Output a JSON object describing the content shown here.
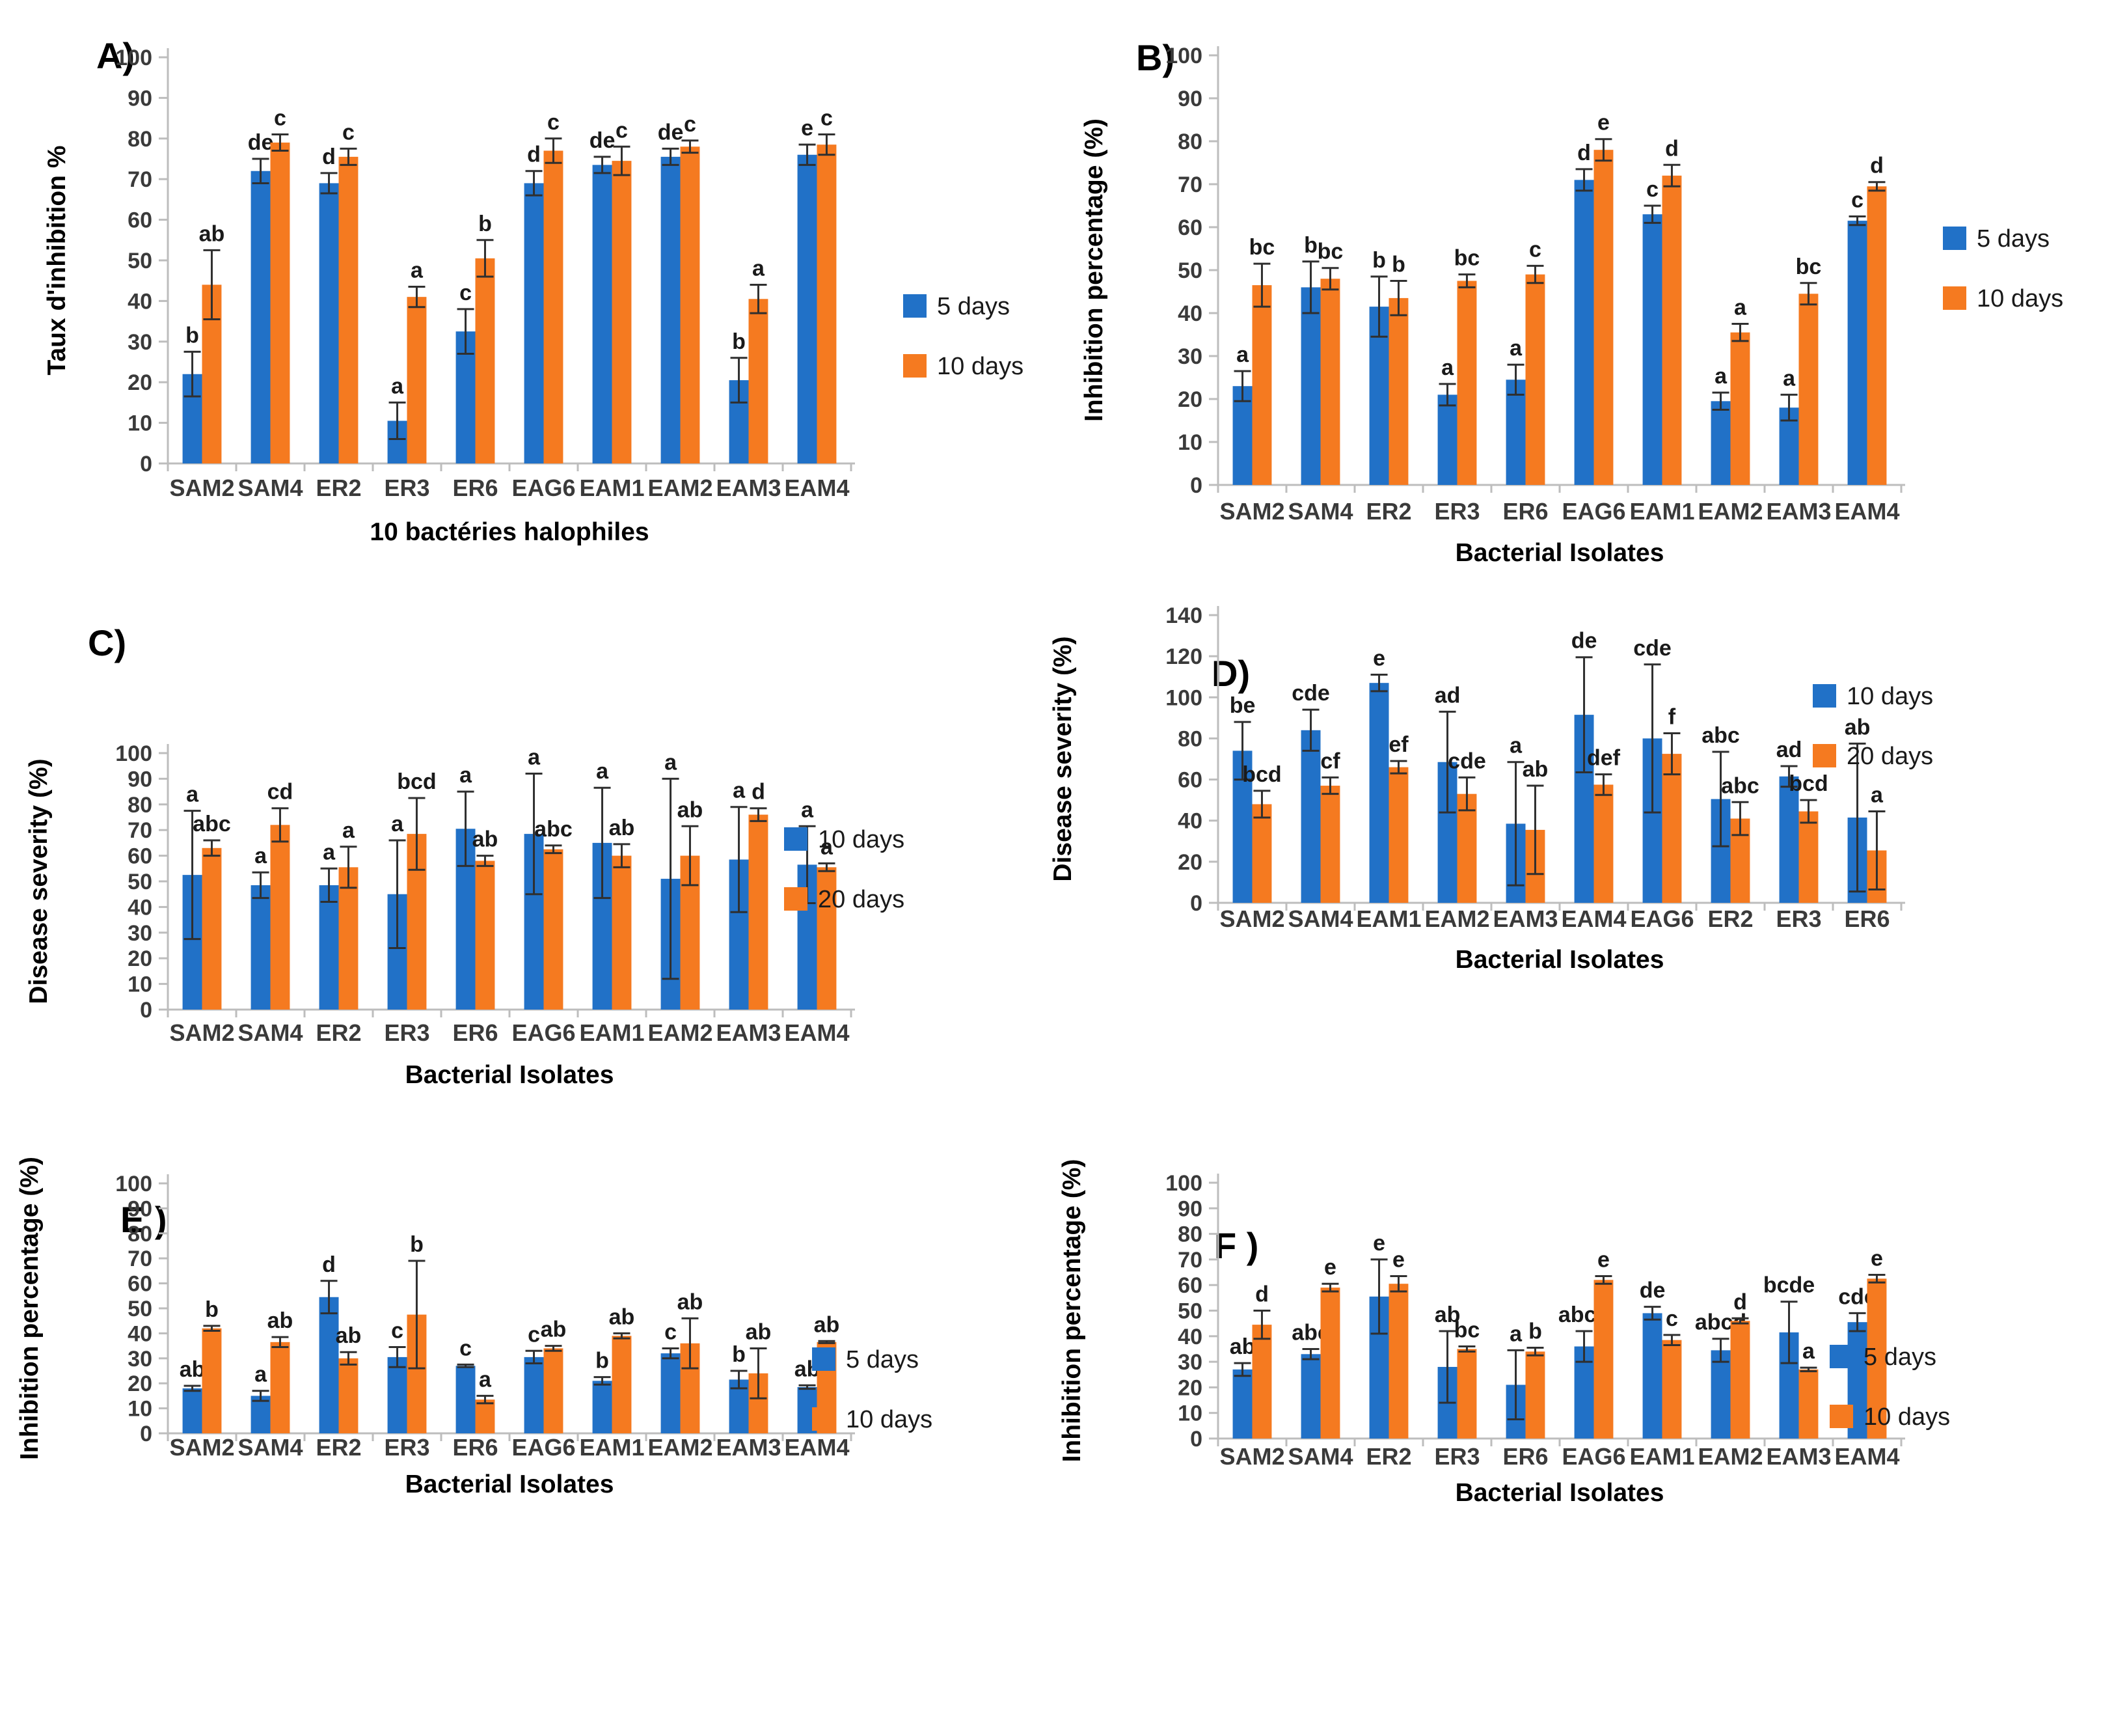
{
  "colors": {
    "series_blue": "#2171C7",
    "series_orange": "#F57A20",
    "axis_line": "#BDBDBD",
    "tick_text": "#3A3A3A",
    "error_bar": "#2F2F2F",
    "letter_text": "#1A1A1A",
    "legend_text": "#1A1A1A"
  },
  "chart_data": [
    {
      "id": "A",
      "panel_label": "A)",
      "type": "bar",
      "title": "",
      "ylabel": "Taux d'inhibition %",
      "xlabel": "10 bactéries halophiles",
      "ylim": [
        0,
        100
      ],
      "ytick_step": 10,
      "grid": false,
      "legend_position": "right",
      "legend": [
        "5 days",
        "10 days"
      ],
      "categories": [
        "SAM2",
        "SAM4",
        "ER2",
        "ER3",
        "ER6",
        "EAG6",
        "EAM1",
        "EAM2",
        "EAM3",
        "EAM4"
      ],
      "series": [
        {
          "name": "5 days",
          "color": "series_blue",
          "values": [
            22,
            72,
            69,
            10.5,
            32.5,
            69,
            73.5,
            75.5,
            20.5,
            76
          ],
          "errors": [
            5.5,
            3,
            2.5,
            4.5,
            5.5,
            3,
            2,
            2,
            5.5,
            2.5
          ],
          "letters": [
            "b",
            "de",
            "d",
            "a",
            "c",
            "d",
            "de",
            "de",
            "b",
            "e"
          ]
        },
        {
          "name": "10 days",
          "color": "series_orange",
          "values": [
            44,
            79,
            75.5,
            41,
            50.5,
            77,
            74.5,
            78,
            40.5,
            78.5
          ],
          "errors": [
            8.5,
            2,
            2,
            2.5,
            4.5,
            3,
            3.5,
            1.5,
            3.5,
            2.5
          ],
          "letters": [
            "ab",
            "c",
            "c",
            "a",
            "b",
            "c",
            "c",
            "c",
            "a",
            "c"
          ]
        }
      ]
    },
    {
      "id": "B",
      "panel_label": "B)",
      "type": "bar",
      "title": "",
      "ylabel": "Inhibition percentage  (%)",
      "xlabel": "Bacterial Isolates",
      "ylim": [
        0,
        100
      ],
      "ytick_step": 10,
      "grid": false,
      "legend_position": "right",
      "legend": [
        "5 days",
        "10 days"
      ],
      "categories": [
        "SAM2",
        "SAM4",
        "ER2",
        "ER3",
        "ER6",
        "EAG6",
        "EAM1",
        "EAM2",
        "EAM3",
        "EAM4"
      ],
      "series": [
        {
          "name": "5 days",
          "color": "series_blue",
          "values": [
            23,
            46,
            41.5,
            21,
            24.5,
            71,
            63,
            19.5,
            18,
            61.5
          ],
          "errors": [
            3.5,
            6,
            7,
            2.5,
            3.5,
            2.5,
            2,
            2,
            3,
            1
          ],
          "letters": [
            "a",
            "b",
            "b",
            "a",
            "a",
            "d",
            "c",
            "a",
            "a",
            "c"
          ]
        },
        {
          "name": "10 days",
          "color": "series_orange",
          "values": [
            46.5,
            48,
            43.5,
            47.5,
            49,
            78,
            72,
            35.5,
            44.5,
            69.5
          ],
          "errors": [
            5,
            2.5,
            4,
            1.5,
            2,
            2.5,
            2.5,
            2,
            2.5,
            1
          ],
          "letters": [
            "bc",
            "bc",
            "b",
            "bc",
            "c",
            "e",
            "d",
            "a",
            "bc",
            "d"
          ]
        }
      ]
    },
    {
      "id": "C",
      "panel_label": "C)",
      "type": "bar",
      "title": "",
      "ylabel": "Disease severity (%)",
      "xlabel": "Bacterial Isolates",
      "ylim": [
        0,
        100
      ],
      "ytick_step": 10,
      "grid": false,
      "legend_position": "right",
      "legend": [
        "10 days",
        "20 days"
      ],
      "categories": [
        "SAM2",
        "SAM4",
        "ER2",
        "ER3",
        "ER6",
        "EAG6",
        "EAM1",
        "EAM2",
        "EAM3",
        "EAM4"
      ],
      "series": [
        {
          "name": "10 days",
          "color": "series_blue",
          "values": [
            52.5,
            48.5,
            48.5,
            45,
            70.5,
            68.5,
            65,
            51,
            58.5,
            56.5
          ],
          "errors": [
            25,
            5,
            6.5,
            21,
            14.5,
            23.5,
            21.5,
            39,
            20.5,
            15
          ],
          "letters": [
            "a",
            "a",
            "a",
            "a",
            "a",
            "a",
            "a",
            "a",
            "a",
            "a"
          ]
        },
        {
          "name": "20 days",
          "color": "series_orange",
          "values": [
            63,
            72,
            55.5,
            68.5,
            58,
            62.5,
            60,
            60,
            76,
            55.5
          ],
          "errors": [
            3,
            6.5,
            8,
            14,
            2,
            1.5,
            4.5,
            11.5,
            2.5,
            1.5
          ],
          "letters": [
            "abc",
            "cd",
            "a",
            "bcd",
            "ab",
            "abc",
            "ab",
            "ab",
            "d",
            "a"
          ]
        }
      ]
    },
    {
      "id": "D",
      "panel_label": "D)",
      "type": "bar",
      "title": "",
      "ylabel": "Disease severity (%)",
      "xlabel": "Bacterial Isolates",
      "ylim": [
        0,
        140
      ],
      "ytick_step": 20,
      "grid": false,
      "legend_position": "right",
      "legend": [
        "10 days",
        "20 days"
      ],
      "categories": [
        "SAM2",
        "SAM4",
        "EAM1",
        "EAM2",
        "EAM3",
        "EAM4",
        "EAG6",
        "ER2",
        "ER3",
        "ER6"
      ],
      "series": [
        {
          "name": "10 days",
          "color": "series_blue",
          "values": [
            74,
            84,
            107,
            68.5,
            38.5,
            91.5,
            80,
            50.5,
            61.5,
            41.5
          ],
          "errors": [
            14,
            10,
            4,
            24.5,
            30,
            28,
            36,
            23,
            5,
            36
          ],
          "letters": [
            "be",
            "cde",
            "e",
            "ad",
            "a",
            "de",
            "cde",
            "abc",
            "ad",
            "ab"
          ]
        },
        {
          "name": "20 days",
          "color": "series_orange",
          "values": [
            48,
            57,
            66,
            53,
            35.5,
            57.5,
            72.5,
            41,
            44.5,
            25.5
          ],
          "errors": [
            6.5,
            4,
            3,
            8,
            21.5,
            5,
            10,
            8,
            5.5,
            19
          ],
          "letters": [
            "bcd",
            "cf",
            "ef",
            "cde",
            "ab",
            "def",
            "f",
            "abc",
            "bcd",
            "a"
          ]
        }
      ]
    },
    {
      "id": "E",
      "panel_label": "E )",
      "type": "bar",
      "title": "",
      "ylabel": "Inhibition percentage  (%)",
      "xlabel": "Bacterial Isolates",
      "ylim": [
        0,
        100
      ],
      "ytick_step": 10,
      "grid": false,
      "legend_position": "right",
      "legend": [
        "5 days",
        "10 days"
      ],
      "categories": [
        "SAM2",
        "SAM4",
        "ER2",
        "ER3",
        "ER6",
        "EAG6",
        "EAM1",
        "EAM2",
        "EAM3",
        "EAM4"
      ],
      "series": [
        {
          "name": "5 days",
          "color": "series_blue",
          "values": [
            18,
            15,
            54.5,
            30.5,
            27,
            30.5,
            21,
            32,
            21.5,
            18.5
          ],
          "errors": [
            1,
            2,
            6.5,
            4,
            0.5,
            2.5,
            1.5,
            2,
            3.5,
            0.7
          ],
          "letters": [
            "ab",
            "a",
            "d",
            "c",
            "c",
            "c",
            "b",
            "c",
            "b",
            "ab"
          ]
        },
        {
          "name": "10 days",
          "color": "series_orange",
          "values": [
            42,
            36.5,
            30,
            47.5,
            13.5,
            34,
            39,
            36,
            24,
            36.5
          ],
          "errors": [
            1,
            2,
            2.5,
            21.5,
            1.5,
            1,
            1,
            10,
            10,
            0.4
          ],
          "letters": [
            "b",
            "ab",
            "ab",
            "b",
            "a",
            "ab",
            "ab",
            "ab",
            "ab",
            "ab"
          ]
        }
      ]
    },
    {
      "id": "F",
      "panel_label": "F )",
      "type": "bar",
      "title": "",
      "ylabel": "Inhibition percentage  (%)",
      "xlabel": "Bacterial Isolates",
      "ylim": [
        0,
        100
      ],
      "ytick_step": 10,
      "grid": false,
      "legend_position": "right",
      "legend": [
        "5 days",
        "10 days"
      ],
      "categories": [
        "SAM2",
        "SAM4",
        "ER2",
        "ER3",
        "ER6",
        "EAG6",
        "EAM1",
        "EAM2",
        "EAM3",
        "EAM4"
      ],
      "series": [
        {
          "name": "5 days",
          "color": "series_blue",
          "values": [
            27,
            33,
            55.5,
            28,
            21,
            36,
            49,
            34.5,
            41.5,
            45.5
          ],
          "errors": [
            2.5,
            2,
            14.5,
            14,
            13.5,
            6,
            2.5,
            4.5,
            12,
            3.5
          ],
          "letters": [
            "ab",
            "abc",
            "e",
            "ab",
            "a",
            "abcd",
            "de",
            "abcd",
            "bcde",
            "cde"
          ]
        },
        {
          "name": "10 days",
          "color": "series_orange",
          "values": [
            44.5,
            59,
            60.5,
            35,
            34,
            62,
            38.5,
            46,
            27,
            62.5
          ],
          "errors": [
            5.5,
            1.5,
            3,
            1,
            1.5,
            1.5,
            2,
            1,
            0.7,
            1.5
          ],
          "letters": [
            "d",
            "e",
            "e",
            "bc",
            "b",
            "e",
            "c",
            "d",
            "a",
            "e"
          ]
        }
      ]
    }
  ]
}
